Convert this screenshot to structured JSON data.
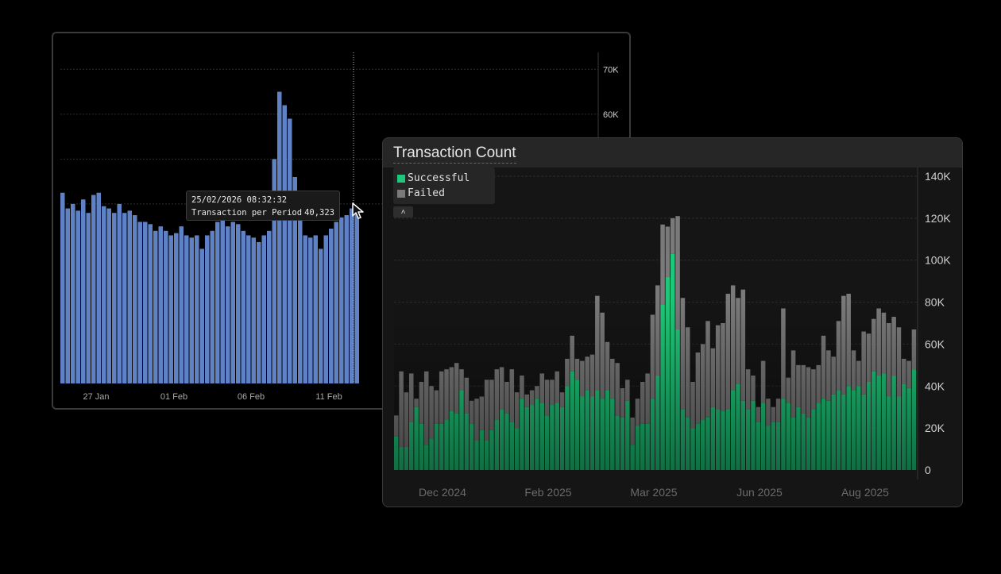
{
  "chart_data": [
    {
      "type": "bar",
      "title": "",
      "x_tick_labels": [
        "27 Jan",
        "01 Feb",
        "06 Feb",
        "11 Feb"
      ],
      "y_ticks": [
        "70K",
        "60K"
      ],
      "ylim": [
        0,
        72000
      ],
      "grid": true,
      "series": [
        {
          "values": [
            42500,
            39000,
            40000,
            38500,
            41000,
            38000,
            42000,
            42500,
            39500,
            39000,
            38000,
            40000,
            38000,
            38500,
            37500,
            36000,
            36000,
            35500,
            34000,
            35000,
            34000,
            33000,
            33500,
            35000,
            33000,
            32500,
            33000,
            30000,
            33000,
            34000,
            36000,
            37000,
            35000,
            36000,
            35500,
            34000,
            33000,
            32500,
            31500,
            33000,
            34000,
            50000,
            65000,
            62000,
            59000,
            46000,
            38000,
            33000,
            32500,
            33000,
            30000,
            33000,
            34500,
            36000,
            37000,
            37500,
            39000,
            38500
          ]
        }
      ],
      "tooltip": {
        "timestamp": "25/02/2026 08:32:32",
        "label": "Transaction per Period",
        "value": "40,323"
      }
    },
    {
      "type": "bar",
      "stacked": true,
      "title": "Transaction Count",
      "x_tick_labels": [
        "Dec 2024",
        "Feb 2025",
        "Mar 2025",
        "Jun 2025",
        "Aug 2025"
      ],
      "y_ticks": [
        "140K",
        "120K",
        "100K",
        "80K",
        "60K",
        "40K",
        "20K",
        "0"
      ],
      "ylim": [
        0,
        140000
      ],
      "grid": true,
      "legend_position": "top-left",
      "series": [
        {
          "name": "Successful",
          "color": "#1ec87a",
          "values": [
            16000,
            11000,
            11000,
            23000,
            30000,
            22000,
            12000,
            15000,
            22000,
            22000,
            24000,
            28000,
            27000,
            38000,
            27000,
            22000,
            14000,
            19000,
            14000,
            19000,
            24000,
            29000,
            27000,
            23000,
            20000,
            34000,
            30000,
            31000,
            34000,
            32000,
            26000,
            31000,
            32000,
            30000,
            40000,
            47000,
            43000,
            35000,
            38000,
            35000,
            38000,
            34000,
            38000,
            34000,
            26000,
            25000,
            33000,
            12000,
            21000,
            22000,
            22000,
            34000,
            45000,
            79000,
            92000,
            103000,
            67000,
            29000,
            25000,
            20000,
            22000,
            24000,
            25000,
            30000,
            29000,
            28000,
            29000,
            38000,
            41000,
            33000,
            29000,
            33000,
            23000,
            32000,
            21000,
            23000,
            23000,
            34000,
            32000,
            25000,
            30000,
            27000,
            25000,
            29000,
            32000,
            34000,
            33000,
            36000,
            38000,
            36000,
            40000,
            38000,
            40000,
            36000,
            42000,
            47000,
            45000,
            46000,
            35000,
            45000,
            35000,
            41000,
            39000,
            48000
          ]
        },
        {
          "name": "Failed",
          "color": "#7a7a7a",
          "values": [
            10000,
            36000,
            26000,
            23000,
            4000,
            20000,
            35000,
            25000,
            16000,
            25000,
            24000,
            21000,
            24000,
            10000,
            17000,
            11000,
            20000,
            16000,
            29000,
            24000,
            24000,
            20000,
            15000,
            25000,
            17000,
            11000,
            6000,
            7000,
            6000,
            14000,
            17000,
            12000,
            15000,
            7000,
            13000,
            17000,
            10000,
            17000,
            16000,
            20000,
            45000,
            41000,
            23000,
            19000,
            25000,
            14000,
            10000,
            13000,
            13000,
            20000,
            24000,
            40000,
            43000,
            38000,
            24000,
            17000,
            54000,
            53000,
            43000,
            22000,
            34000,
            36000,
            46000,
            28000,
            40000,
            42000,
            55000,
            50000,
            41000,
            53000,
            19000,
            12000,
            7000,
            20000,
            13000,
            7000,
            11000,
            43000,
            12000,
            32000,
            20000,
            23000,
            24000,
            19000,
            18000,
            30000,
            24000,
            18000,
            33000,
            47000,
            44000,
            19000,
            12000,
            30000,
            23000,
            25000,
            32000,
            29000,
            35000,
            28000,
            33000,
            12000,
            13000,
            19000
          ]
        }
      ],
      "legend": {
        "collapse_icon": "chevron-up-icon"
      }
    }
  ]
}
